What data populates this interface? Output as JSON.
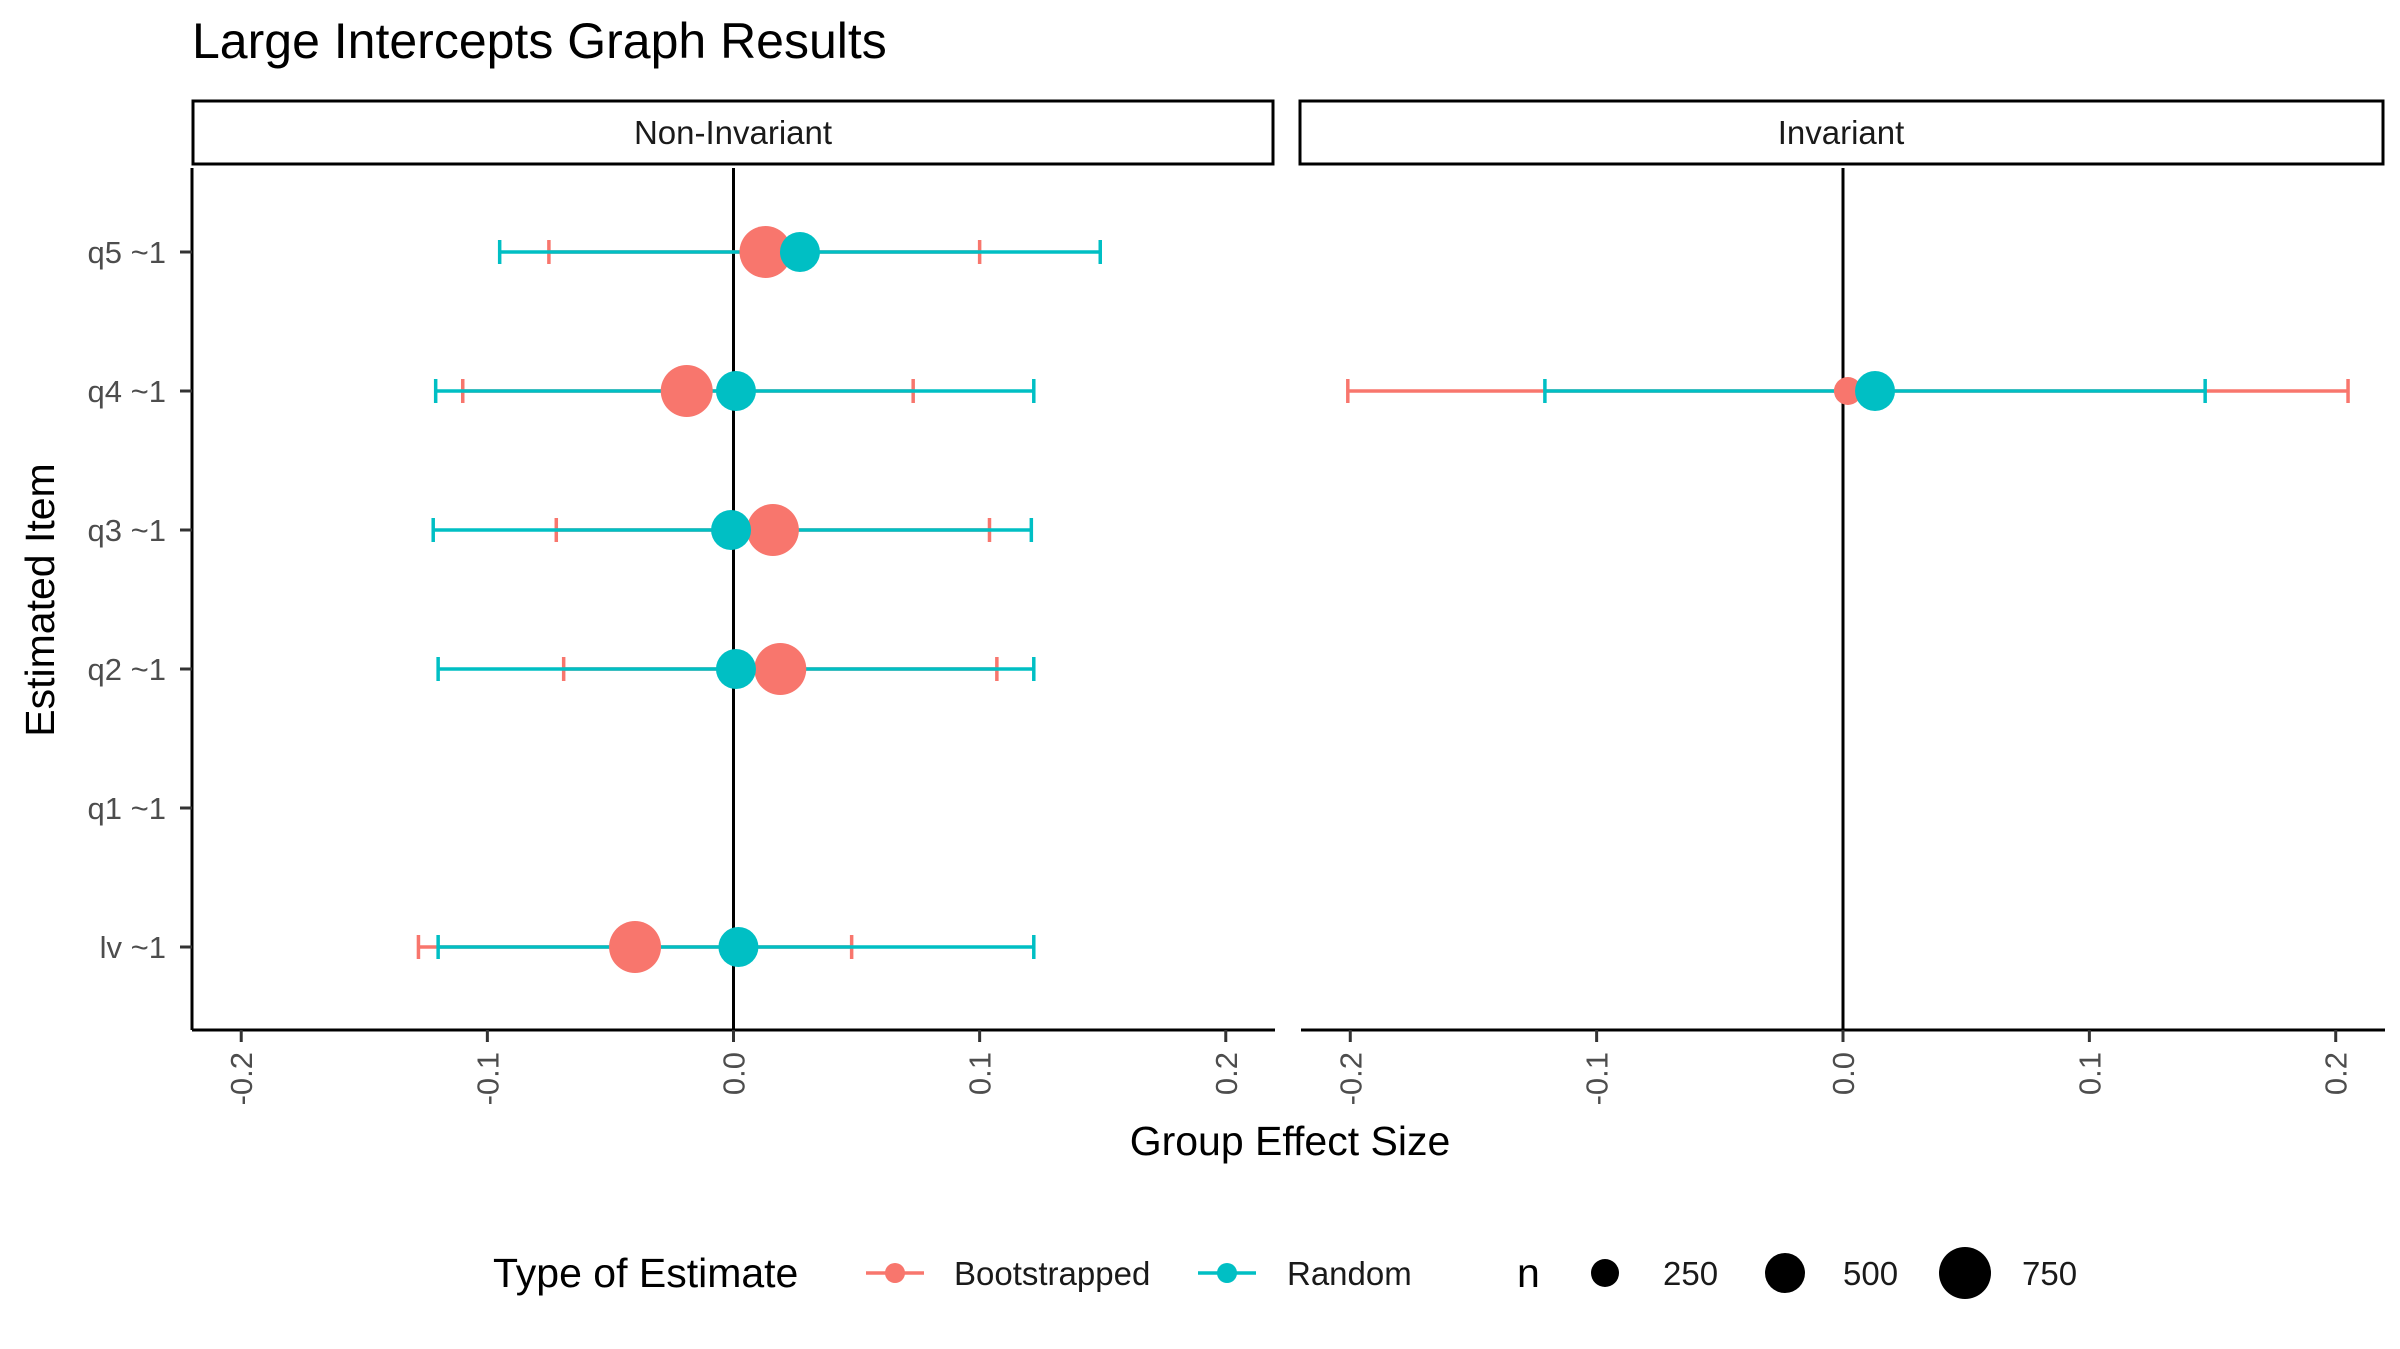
{
  "chart_data": {
    "type": "scatter",
    "title": "Large Intercepts Graph Results",
    "xlabel": "Group Effect Size",
    "ylabel": "Estimated Item",
    "xlim": [
      -0.22,
      0.22
    ],
    "x_ticks": [
      "-0.2",
      "-0.1",
      "0.0",
      "0.1",
      "0.2"
    ],
    "x_tick_values": [
      -0.2,
      -0.1,
      0.0,
      0.1,
      0.2
    ],
    "y_categories": [
      "q5 ~1",
      "q4 ~1",
      "q3 ~1",
      "q2 ~1",
      "q1 ~1",
      "lv ~1"
    ],
    "grid": false,
    "reference_line_x": 0,
    "facets": [
      "Non-Invariant",
      "Invariant"
    ],
    "legend": {
      "position": "bottom",
      "color_title": "Type of Estimate",
      "size_title": "n",
      "size_labels": [
        "250",
        "500",
        "750"
      ],
      "size_values": [
        250,
        500,
        750
      ]
    },
    "series": [
      {
        "name": "Bootstrapped",
        "color": "#F8766D",
        "points": [
          {
            "facet": "Non-Invariant",
            "item": "q5 ~1",
            "x": 0.013,
            "lo": -0.075,
            "hi": 0.1,
            "n": 750
          },
          {
            "facet": "Non-Invariant",
            "item": "q4 ~1",
            "x": -0.019,
            "lo": -0.11,
            "hi": 0.073,
            "n": 750
          },
          {
            "facet": "Non-Invariant",
            "item": "q3 ~1",
            "x": 0.016,
            "lo": -0.072,
            "hi": 0.104,
            "n": 750
          },
          {
            "facet": "Non-Invariant",
            "item": "q2 ~1",
            "x": 0.019,
            "lo": -0.069,
            "hi": 0.107,
            "n": 750
          },
          {
            "facet": "Non-Invariant",
            "item": "lv ~1",
            "x": -0.04,
            "lo": -0.128,
            "hi": 0.048,
            "n": 750
          },
          {
            "facet": "Invariant",
            "item": "q4 ~1",
            "x": 0.002,
            "lo": -0.201,
            "hi": 0.205,
            "n": 250
          }
        ]
      },
      {
        "name": "Random",
        "color": "#00BFC4",
        "points": [
          {
            "facet": "Non-Invariant",
            "item": "q5 ~1",
            "x": 0.027,
            "lo": -0.095,
            "hi": 0.149,
            "n": 500
          },
          {
            "facet": "Non-Invariant",
            "item": "q4 ~1",
            "x": 0.001,
            "lo": -0.121,
            "hi": 0.122,
            "n": 500
          },
          {
            "facet": "Non-Invariant",
            "item": "q3 ~1",
            "x": -0.001,
            "lo": -0.122,
            "hi": 0.121,
            "n": 500
          },
          {
            "facet": "Non-Invariant",
            "item": "q2 ~1",
            "x": 0.001,
            "lo": -0.12,
            "hi": 0.122,
            "n": 500
          },
          {
            "facet": "Non-Invariant",
            "item": "lv ~1",
            "x": 0.002,
            "lo": -0.12,
            "hi": 0.122,
            "n": 500
          },
          {
            "facet": "Invariant",
            "item": "q4 ~1",
            "x": 0.013,
            "lo": -0.121,
            "hi": 0.147,
            "n": 500
          }
        ]
      }
    ]
  }
}
